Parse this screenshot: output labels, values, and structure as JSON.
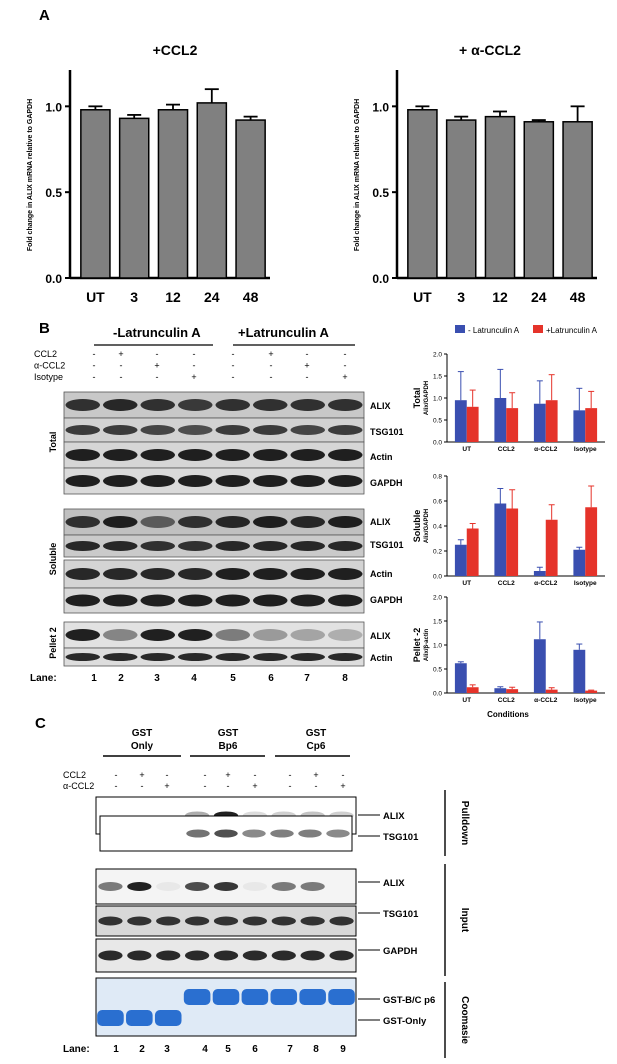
{
  "panel_labels": {
    "a": "A",
    "b": "B",
    "c": "C"
  },
  "chart_data": [
    {
      "type": "bar",
      "title": "+CCL2",
      "ylabel": "Fold change in ALIX mRNA relative to GAPDH",
      "categories": [
        "UT",
        "3",
        "12",
        "24",
        "48"
      ],
      "values": [
        0.98,
        0.93,
        0.98,
        1.02,
        0.92
      ],
      "errors": [
        0.02,
        0.02,
        0.03,
        0.08,
        0.02
      ],
      "ylim": [
        0,
        1.2
      ],
      "yticks": [
        "0.0",
        "0.5",
        "1.0"
      ],
      "bar_color": "#808080"
    },
    {
      "type": "bar",
      "title": "+ α-CCL2",
      "ylabel": "Fold change in ALIX mRNA relative to GAPDH",
      "categories": [
        "UT",
        "3",
        "12",
        "24",
        "48"
      ],
      "values": [
        0.98,
        0.92,
        0.94,
        0.91,
        0.91
      ],
      "errors": [
        0.02,
        0.02,
        0.03,
        0.01,
        0.09
      ],
      "ylim": [
        0,
        1.2
      ],
      "yticks": [
        "0.0",
        "0.5",
        "1.0"
      ],
      "bar_color": "#808080"
    },
    {
      "type": "bar",
      "ylabel": "Total Alix/GAPDH",
      "categories": [
        "UT",
        "CCL2",
        "α-CCL2",
        "Isotype"
      ],
      "series": [
        {
          "name": "- Latrunculin A",
          "color": "#3a4fb0",
          "values": [
            0.95,
            1.0,
            0.87,
            0.72
          ],
          "errors": [
            0.65,
            0.65,
            0.52,
            0.5
          ]
        },
        {
          "name": "+Latrunculin A",
          "color": "#e5332a",
          "values": [
            0.8,
            0.77,
            0.95,
            0.77
          ],
          "errors": [
            0.38,
            0.35,
            0.58,
            0.38
          ]
        }
      ],
      "ylim": [
        0,
        2.0
      ],
      "yticks": [
        "0.0",
        "0.5",
        "1.0",
        "1.5",
        "2.0"
      ]
    },
    {
      "type": "bar",
      "ylabel": "Soluble Alix/GAPDH",
      "categories": [
        "UT",
        "CCL2",
        "α-CCL2",
        "Isotype"
      ],
      "series": [
        {
          "name": "- Latrunculin A",
          "color": "#3a4fb0",
          "values": [
            0.25,
            0.58,
            0.04,
            0.21
          ],
          "errors": [
            0.04,
            0.12,
            0.03,
            0.02
          ]
        },
        {
          "name": "+Latrunculin A",
          "color": "#e5332a",
          "values": [
            0.38,
            0.54,
            0.45,
            0.55
          ],
          "errors": [
            0.04,
            0.15,
            0.12,
            0.17
          ]
        }
      ],
      "ylim": [
        0,
        0.8
      ],
      "yticks": [
        "0.0",
        "0.2",
        "0.4",
        "0.6",
        "0.8"
      ]
    },
    {
      "type": "bar",
      "ylabel": "Pellet -2 Alix/β-actin",
      "xlabel": "Conditions",
      "categories": [
        "UT",
        "CCL2",
        "α-CCL2",
        "Isotype"
      ],
      "series": [
        {
          "name": "- Latrunculin A",
          "color": "#3a4fb0",
          "values": [
            0.62,
            0.1,
            1.12,
            0.9
          ],
          "errors": [
            0.03,
            0.03,
            0.36,
            0.12
          ]
        },
        {
          "name": "+Latrunculin A",
          "color": "#e5332a",
          "values": [
            0.12,
            0.08,
            0.07,
            0.05
          ],
          "errors": [
            0.05,
            0.04,
            0.04,
            0.01
          ]
        }
      ],
      "ylim": [
        0,
        2.0
      ],
      "yticks": [
        "0.0",
        "0.5",
        "1.0",
        "1.5",
        "2.0"
      ]
    }
  ],
  "blot_b": {
    "headers": [
      "-Latrunculin A",
      "+Latrunculin A"
    ],
    "rows": [
      {
        "label": "CCL2",
        "marks": [
          "-",
          "+",
          "-",
          "-",
          "-",
          "+",
          "-",
          "-"
        ]
      },
      {
        "label": "α-CCL2",
        "marks": [
          "-",
          "-",
          "+",
          "-",
          "-",
          "-",
          "+",
          "-"
        ]
      },
      {
        "label": "Isotype",
        "marks": [
          "-",
          "-",
          "-",
          "+",
          "-",
          "-",
          "-",
          "+"
        ]
      }
    ],
    "groups": [
      "Total",
      "Soluble",
      "Pellet 2"
    ],
    "bands": {
      "total": [
        "ALIX",
        "TSG101",
        "Actin",
        "GAPDH"
      ],
      "soluble": [
        "ALIX",
        "TSG101",
        "Actin",
        "GAPDH"
      ],
      "pellet": [
        "ALIX",
        "Actin"
      ]
    },
    "lane_label": "Lane:",
    "lanes": [
      "1",
      "2",
      "3",
      "4",
      "5",
      "6",
      "7",
      "8"
    ]
  },
  "blot_c": {
    "headers": [
      [
        "GST",
        "Only"
      ],
      [
        "GST",
        "Bp6"
      ],
      [
        "GST",
        "Cp6"
      ]
    ],
    "rows": [
      {
        "label": "CCL2",
        "marks": [
          "-",
          "+",
          "-",
          "-",
          "+",
          "-",
          "-",
          "+",
          "-"
        ]
      },
      {
        "label": "α-CCL2",
        "marks": [
          "-",
          "-",
          "+",
          "-",
          "-",
          "+",
          "-",
          "-",
          "+"
        ]
      }
    ],
    "bands": [
      "ALIX",
      "TSG101",
      "ALIX",
      "TSG101",
      "GAPDH",
      "GST-B/C p6",
      "GST-Only"
    ],
    "sections": [
      "Pulldown",
      "Input",
      "Coomasie"
    ],
    "lane_label": "Lane:",
    "lanes": [
      "1",
      "2",
      "3",
      "4",
      "5",
      "6",
      "7",
      "8",
      "9"
    ]
  }
}
